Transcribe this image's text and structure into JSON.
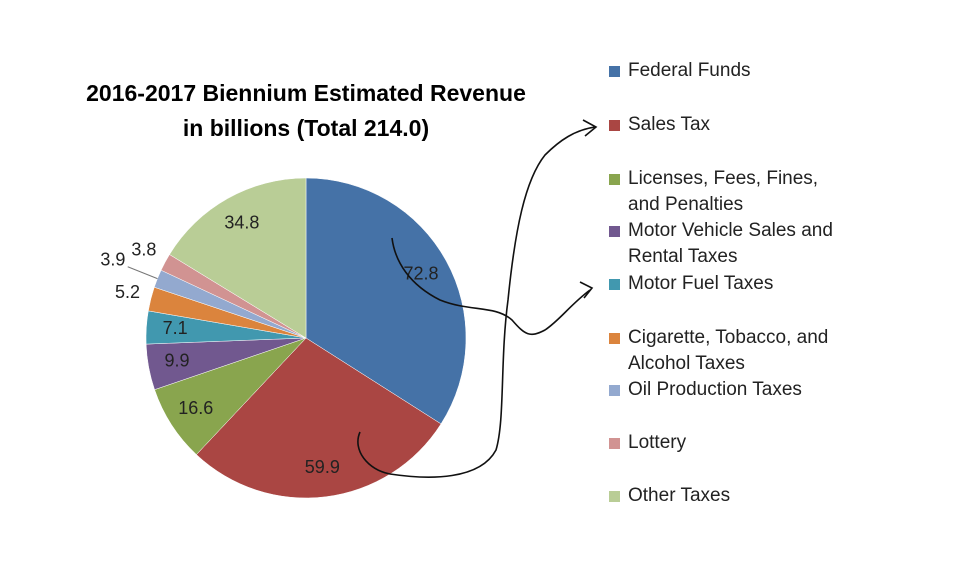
{
  "chart_data": {
    "type": "pie",
    "title": "2016-2017 Biennium Estimated Revenue",
    "subtitle": "in billions (Total 214.0)",
    "categories": [
      "Federal Funds",
      "Sales Tax",
      "Licenses, Fees, Fines, and Penalties",
      "Motor Vehicle Sales and Rental Taxes",
      "Motor Fuel Taxes",
      "Cigarette, Tobacco, and Alcohol Taxes",
      "Oil Production Taxes",
      "Lottery",
      "Other Taxes"
    ],
    "values": [
      72.8,
      59.9,
      16.6,
      9.9,
      7.1,
      5.2,
      3.9,
      3.8,
      34.8
    ],
    "colors": [
      "#4572a7",
      "#aa4643",
      "#89a54e",
      "#71588f",
      "#4198af",
      "#db843d",
      "#93a9cf",
      "#d19392",
      "#b9cd96"
    ],
    "legend": "right"
  }
}
